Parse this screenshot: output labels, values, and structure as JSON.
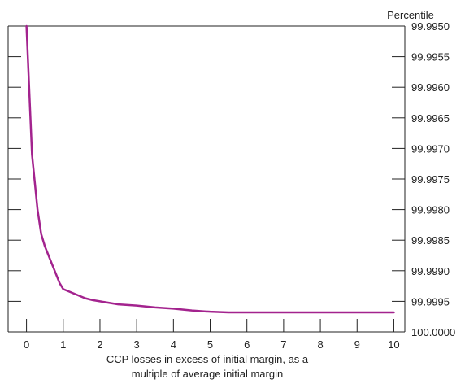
{
  "chart_data": {
    "type": "line",
    "title": "",
    "xlabel_lines": [
      "CCP losses in excess of initial margin, as a",
      "multiple of average initial margin"
    ],
    "ylabel": "Percentile",
    "xlim": [
      -0.5,
      10.3
    ],
    "ylim_top_to_bottom": [
      99.995,
      100.0
    ],
    "x_ticks": [
      0,
      1,
      2,
      3,
      4,
      5,
      6,
      7,
      8,
      9,
      10
    ],
    "y_ticks": [
      "99.9950",
      "99.9955",
      "99.9960",
      "99.9965",
      "99.9970",
      "99.9975",
      "99.9980",
      "99.9985",
      "99.9990",
      "99.9995",
      "100.0000"
    ],
    "y_tick_values": [
      99.995,
      99.9955,
      99.996,
      99.9965,
      99.997,
      99.9975,
      99.998,
      99.9985,
      99.999,
      99.9995,
      100.0
    ],
    "grid": false,
    "colors": {
      "line": "#a3238e",
      "axis": "#222222"
    },
    "series": [
      {
        "name": "",
        "x": [
          0.0,
          0.05,
          0.1,
          0.15,
          0.2,
          0.25,
          0.3,
          0.4,
          0.5,
          0.6,
          0.7,
          0.8,
          0.9,
          1.0,
          1.2,
          1.4,
          1.6,
          1.8,
          2.0,
          2.5,
          3.0,
          3.5,
          4.0,
          4.5,
          5.0,
          5.5,
          6.0,
          7.0,
          8.0,
          9.0,
          10.0
        ],
        "y": [
          99.995,
          99.9957,
          99.9964,
          99.9971,
          99.9974,
          99.9977,
          99.998,
          99.9984,
          99.9986,
          99.99875,
          99.9989,
          99.99905,
          99.9992,
          99.9993,
          99.99935,
          99.9994,
          99.99945,
          99.99948,
          99.9995,
          99.99955,
          99.99957,
          99.9996,
          99.99962,
          99.99965,
          99.99967,
          99.99968,
          99.99968,
          99.99968,
          99.99968,
          99.99968,
          99.99968
        ]
      }
    ]
  }
}
